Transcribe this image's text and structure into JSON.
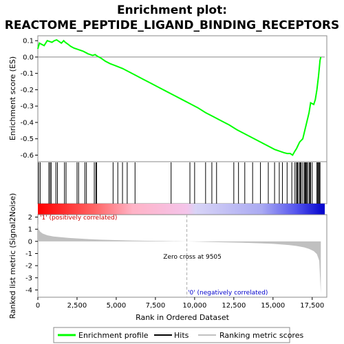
{
  "chart_data": {
    "type": "line",
    "title_lines": [
      "Enrichment plot:",
      "REACTOME_PEPTIDE_LIGAND_BINDING_RECEPTORS"
    ],
    "top_panel": {
      "ylabel": "Enrichment score (ES)",
      "ylim": [
        -0.64,
        0.13
      ],
      "yticks": [
        "0.1",
        "0.0",
        "-0.1",
        "-0.2",
        "-0.3",
        "-0.4",
        "-0.5",
        "-0.6"
      ],
      "ytick_values": [
        0.1,
        0.0,
        -0.1,
        -0.2,
        -0.3,
        -0.4,
        -0.5,
        -0.6
      ],
      "series": [
        {
          "name": "Enrichment profile",
          "color": "#00ff00",
          "x": [
            0,
            100,
            400,
            600,
            750,
            900,
            1050,
            1200,
            1350,
            1500,
            1650,
            1750,
            1900,
            2100,
            2300,
            2600,
            2900,
            3200,
            3500,
            3650,
            3800,
            4000,
            4300,
            4600,
            5000,
            5400,
            5800,
            6200,
            6700,
            7200,
            7700,
            8200,
            8700,
            9200,
            9700,
            10200,
            10700,
            11200,
            11700,
            12200,
            12700,
            13100,
            13500,
            13900,
            14300,
            14700,
            15100,
            15400,
            15700,
            15900,
            16100,
            16250,
            16400,
            16500,
            16600,
            16700,
            16800,
            16900,
            17000,
            17100,
            17200,
            17300,
            17400,
            17500,
            17600,
            17700,
            17800,
            17900,
            18000,
            18050
          ],
          "y": [
            0.05,
            0.085,
            0.07,
            0.1,
            0.095,
            0.09,
            0.1,
            0.105,
            0.095,
            0.085,
            0.1,
            0.09,
            0.08,
            0.065,
            0.055,
            0.045,
            0.035,
            0.02,
            0.01,
            0.015,
            0.005,
            -0.005,
            -0.025,
            -0.04,
            -0.055,
            -0.07,
            -0.09,
            -0.11,
            -0.135,
            -0.16,
            -0.185,
            -0.21,
            -0.235,
            -0.26,
            -0.285,
            -0.31,
            -0.34,
            -0.365,
            -0.39,
            -0.415,
            -0.445,
            -0.465,
            -0.485,
            -0.505,
            -0.525,
            -0.545,
            -0.565,
            -0.575,
            -0.585,
            -0.59,
            -0.59,
            -0.6,
            -0.575,
            -0.56,
            -0.54,
            -0.52,
            -0.51,
            -0.5,
            -0.46,
            -0.42,
            -0.38,
            -0.34,
            -0.28,
            -0.285,
            -0.29,
            -0.26,
            -0.2,
            -0.12,
            -0.02,
            0.0
          ]
        }
      ]
    },
    "hits_panel": {
      "name": "Hits",
      "hit_positions": [
        50,
        150,
        700,
        780,
        850,
        1150,
        1250,
        1700,
        1800,
        2500,
        2600,
        3000,
        3100,
        3600,
        3700,
        3750,
        4800,
        5100,
        5400,
        5700,
        6200,
        8500,
        9700,
        10000,
        10700,
        11100,
        11400,
        12500,
        12800,
        13200,
        13700,
        14200,
        14700,
        15100,
        15400,
        15600,
        15900,
        16200,
        16400,
        16500,
        16550,
        16600,
        16700,
        16750,
        16800,
        16900,
        17000,
        17050,
        17100,
        17150,
        17200,
        17300,
        17350,
        17400,
        17500,
        17800,
        17850,
        17900,
        17950,
        18000
      ]
    },
    "bottom_panel": {
      "name": "Ranking metric scores",
      "ylabel": "Ranked list metric (Signal2Noise)",
      "xlabel": "Rank in Ordered Dataset",
      "xlim": [
        0,
        18300
      ],
      "ylim": [
        -4.6,
        2.2
      ],
      "yticks": [
        "2",
        "1",
        "0",
        "-1",
        "-2",
        "-3",
        "-4"
      ],
      "ytick_values": [
        2,
        1,
        0,
        -1,
        -2,
        -3,
        -4
      ],
      "xticks": [
        "0",
        "2,500",
        "5,000",
        "7,500",
        "10,000",
        "12,500",
        "15,000",
        "17,500"
      ],
      "xtick_values": [
        0,
        2500,
        5000,
        7500,
        10000,
        12500,
        15000,
        17500
      ],
      "metric_profile": {
        "x": [
          0,
          50,
          150,
          300,
          600,
          1000,
          2000,
          3000,
          4000,
          5000,
          6000,
          7000,
          8000,
          9000,
          9505,
          10000,
          11000,
          12000,
          13000,
          14000,
          15000,
          16000,
          16500,
          17000,
          17300,
          17600,
          17800,
          17950,
          18050
        ],
        "y": [
          1.5,
          1.0,
          0.8,
          0.65,
          0.5,
          0.4,
          0.28,
          0.2,
          0.14,
          0.1,
          0.07,
          0.05,
          0.03,
          0.01,
          0.0,
          -0.02,
          -0.05,
          -0.08,
          -0.11,
          -0.15,
          -0.2,
          -0.3,
          -0.38,
          -0.5,
          -0.62,
          -0.8,
          -1.05,
          -1.6,
          -4.3
        ]
      },
      "zero_cross_label": "Zero cross at 9505",
      "zero_cross": 9505,
      "pos_label": "'1' (positively correlated)",
      "neg_label": "'0' (negatively correlated)"
    },
    "legend": [
      "Enrichment profile",
      "Hits",
      "Ranking metric scores"
    ],
    "colors": {
      "profile": "#00ff00",
      "hits": "#000000",
      "metric": "#c0c0c0",
      "pos_label": "#cc0000",
      "neg_label": "#0000cc"
    }
  }
}
